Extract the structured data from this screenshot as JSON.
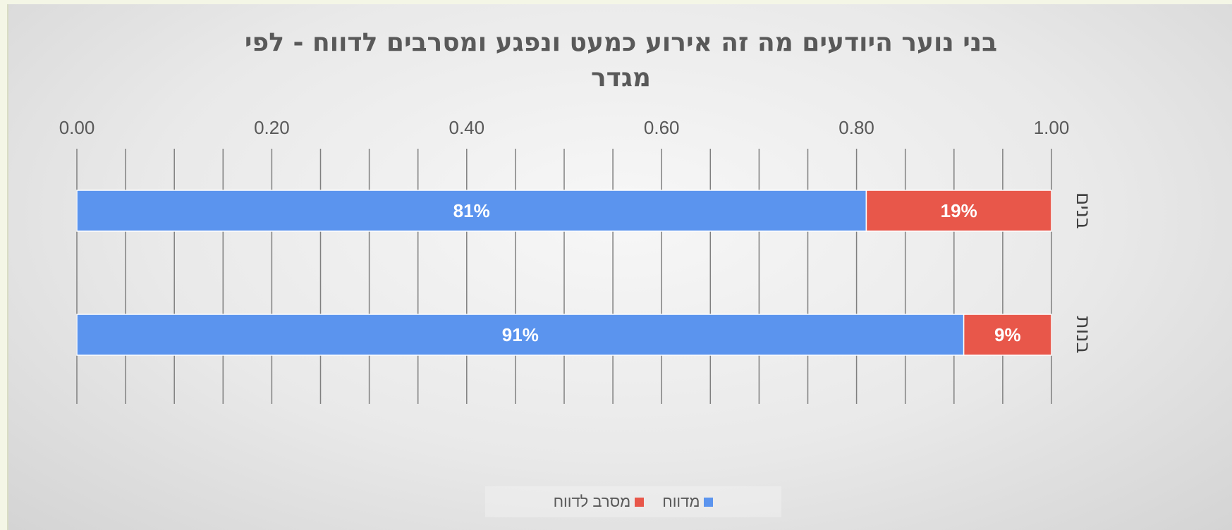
{
  "chart_data": {
    "type": "bar",
    "orientation": "horizontal",
    "stacked": true,
    "title_lines": [
      "בני נוער היודעים מה זה אירוע כמעט ונפגע ומסרבים לדווח - לפי",
      "מגדר"
    ],
    "categories": [
      "בנים",
      "בנות"
    ],
    "series": [
      {
        "name": "מדווח",
        "color": "#5b94ee",
        "values": [
          0.81,
          0.91
        ],
        "labels": [
          "81%",
          "91%"
        ]
      },
      {
        "name": "מסרב לדווח",
        "color": "#e8574a",
        "values": [
          0.19,
          0.09
        ],
        "labels": [
          "19%",
          "9%"
        ]
      }
    ],
    "xlim": [
      0,
      1
    ],
    "x_ticks": [
      "0.00",
      "0.20",
      "0.40",
      "0.60",
      "0.80",
      "1.00"
    ],
    "grid": true,
    "axis_position": "top",
    "legend_position": "bottom"
  }
}
